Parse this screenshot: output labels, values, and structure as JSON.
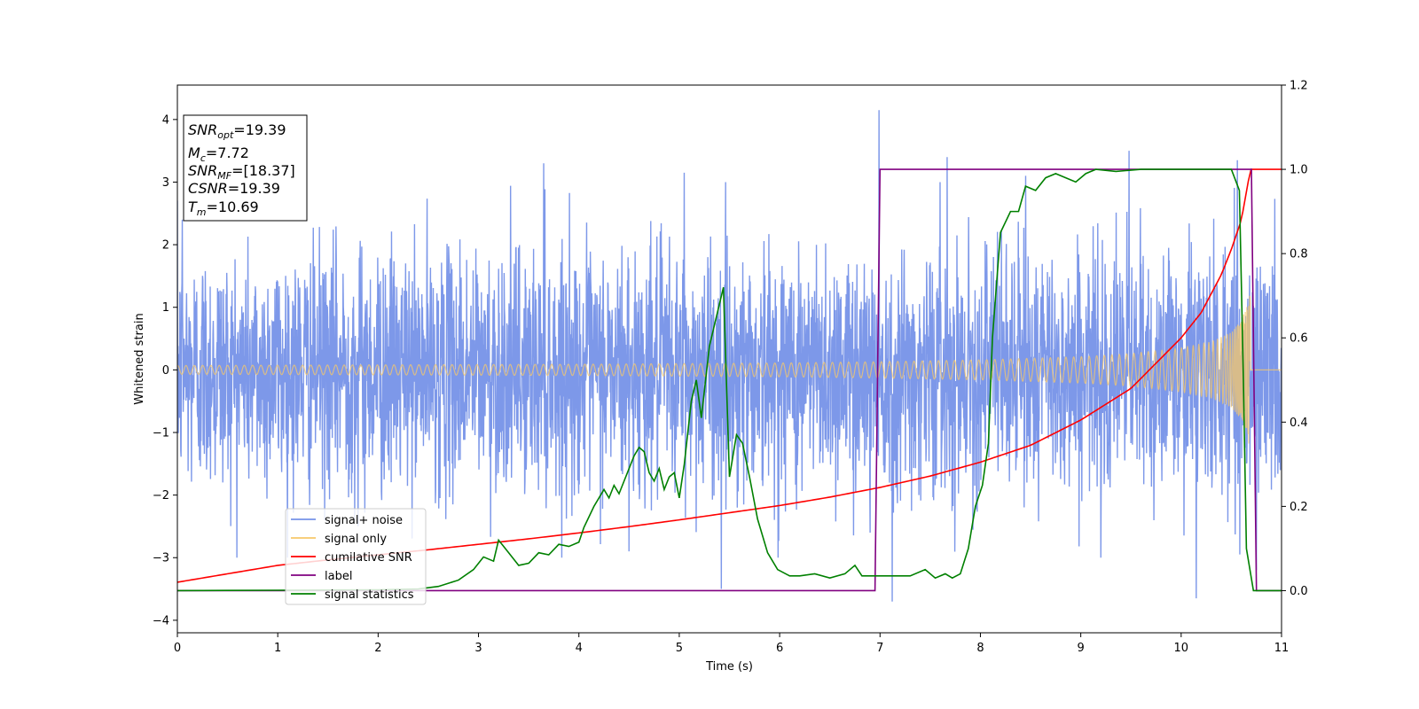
{
  "chart_data": {
    "type": "line",
    "title": "",
    "xlabel": "Time (s)",
    "ylabel": "Whitened strain",
    "y2label": "",
    "xlim": [
      0,
      11
    ],
    "ylim": [
      -4.2,
      4.55
    ],
    "y2lim": [
      -0.1,
      1.2
    ],
    "xticks": [
      "0",
      "1",
      "2",
      "3",
      "4",
      "5",
      "6",
      "7",
      "8",
      "9",
      "10",
      "11"
    ],
    "yticks": [
      "−4",
      "−3",
      "−2",
      "−1",
      "0",
      "1",
      "2",
      "3",
      "4"
    ],
    "y2ticks": [
      "0.0",
      "0.2",
      "0.4",
      "0.6",
      "0.8",
      "1.0",
      "1.2"
    ],
    "grid": false,
    "legend_position": "lower-left",
    "annotation": {
      "lines": [
        {
          "sym": "SNR",
          "sub": "opt",
          "rest": "=19.39"
        },
        {
          "sym": "M",
          "sub": "c",
          "rest": "=7.72"
        },
        {
          "sym": "SNR",
          "sub": "MF",
          "rest": "=[18.37]"
        },
        {
          "sym": "CSNR",
          "sub": "",
          "rest": "=19.39"
        },
        {
          "sym": "T",
          "sub": "m",
          "rest": "=10.69"
        }
      ]
    },
    "series": [
      {
        "name": "signal+ noise",
        "axis": "left",
        "color": "#7692e8",
        "noise_sigma": 1.0,
        "spikes": [
          [
            0.05,
            2.4
          ],
          [
            1.8,
            -2.5
          ],
          [
            3.65,
            3.3
          ],
          [
            4.5,
            -2.9
          ],
          [
            5.05,
            3.15
          ],
          [
            5.42,
            -3.5
          ],
          [
            6.9,
            -2.6
          ],
          [
            6.99,
            4.15
          ],
          [
            7.12,
            -3.7
          ],
          [
            7.67,
            3.4
          ],
          [
            8.45,
            3.1
          ],
          [
            9.48,
            3.5
          ],
          [
            10.15,
            -3.65
          ],
          [
            10.56,
            3.35
          ],
          [
            10.75,
            -3.2
          ]
        ]
      },
      {
        "name": "signal only",
        "axis": "left",
        "color": "#f7c86a",
        "amplitude_envelope": {
          "t": [
            0,
            1,
            2,
            3,
            4,
            5,
            6,
            7,
            8,
            9,
            9.5,
            10,
            10.3,
            10.5,
            10.6,
            10.65,
            10.69
          ],
          "a": [
            0.07,
            0.075,
            0.08,
            0.085,
            0.09,
            0.1,
            0.11,
            0.13,
            0.16,
            0.21,
            0.26,
            0.35,
            0.45,
            0.6,
            0.8,
            1.0,
            1.3
          ]
        },
        "merger_time": 10.69
      },
      {
        "name": "cumilative SNR",
        "axis": "right",
        "color": "#ff0000",
        "x": [
          0,
          0.5,
          1,
          1.5,
          2,
          2.5,
          3,
          3.5,
          4,
          4.5,
          5,
          5.5,
          6,
          6.5,
          7,
          7.5,
          8,
          8.5,
          9,
          9.5,
          10,
          10.2,
          10.4,
          10.5,
          10.6,
          10.69,
          11
        ],
        "y": [
          0.02,
          0.04,
          0.06,
          0.073,
          0.085,
          0.097,
          0.11,
          0.123,
          0.137,
          0.152,
          0.168,
          0.185,
          0.202,
          0.222,
          0.245,
          0.272,
          0.305,
          0.345,
          0.405,
          0.48,
          0.6,
          0.66,
          0.75,
          0.81,
          0.88,
          1.0,
          1.0
        ]
      },
      {
        "name": "label",
        "axis": "right",
        "color": "#800080",
        "x": [
          0,
          6.95,
          7.0,
          10.7,
          10.75,
          11
        ],
        "y": [
          0,
          0,
          1,
          1,
          0,
          0
        ]
      },
      {
        "name": "signal statistics",
        "axis": "right",
        "color": "#008000",
        "x": [
          0,
          1,
          2,
          2.4,
          2.6,
          2.8,
          2.95,
          3.05,
          3.15,
          3.2,
          3.3,
          3.4,
          3.5,
          3.6,
          3.7,
          3.8,
          3.9,
          4.0,
          4.05,
          4.15,
          4.25,
          4.3,
          4.35,
          4.4,
          4.45,
          4.55,
          4.6,
          4.65,
          4.7,
          4.75,
          4.8,
          4.85,
          4.9,
          4.95,
          5.0,
          5.05,
          5.12,
          5.17,
          5.22,
          5.3,
          5.37,
          5.44,
          5.5,
          5.57,
          5.63,
          5.7,
          5.78,
          5.88,
          5.98,
          6.1,
          6.2,
          6.35,
          6.5,
          6.65,
          6.75,
          6.82,
          6.9,
          7.0,
          7.15,
          7.3,
          7.45,
          7.55,
          7.65,
          7.72,
          7.8,
          7.88,
          7.95,
          8.02,
          8.08,
          8.12,
          8.2,
          8.3,
          8.38,
          8.45,
          8.55,
          8.65,
          8.75,
          8.85,
          8.95,
          9.05,
          9.15,
          9.35,
          9.6,
          9.8,
          10.0,
          10.3,
          10.5,
          10.58,
          10.62,
          10.65,
          10.72,
          10.8,
          11
        ],
        "y": [
          0,
          0.001,
          0.002,
          0.004,
          0.01,
          0.025,
          0.05,
          0.08,
          0.07,
          0.12,
          0.09,
          0.06,
          0.065,
          0.09,
          0.085,
          0.11,
          0.105,
          0.115,
          0.15,
          0.2,
          0.24,
          0.22,
          0.25,
          0.23,
          0.26,
          0.32,
          0.34,
          0.33,
          0.28,
          0.26,
          0.29,
          0.24,
          0.27,
          0.28,
          0.22,
          0.3,
          0.45,
          0.5,
          0.41,
          0.58,
          0.65,
          0.72,
          0.27,
          0.37,
          0.35,
          0.27,
          0.17,
          0.09,
          0.05,
          0.035,
          0.035,
          0.04,
          0.03,
          0.04,
          0.06,
          0.035,
          0.035,
          0.035,
          0.035,
          0.035,
          0.05,
          0.03,
          0.04,
          0.03,
          0.04,
          0.1,
          0.2,
          0.25,
          0.35,
          0.6,
          0.85,
          0.9,
          0.9,
          0.96,
          0.95,
          0.98,
          0.99,
          0.98,
          0.97,
          0.99,
          1.0,
          0.995,
          1.0,
          1.0,
          1.0,
          1.0,
          1.0,
          0.95,
          0.5,
          0.1,
          0.0,
          0.0,
          0.0
        ]
      }
    ]
  }
}
